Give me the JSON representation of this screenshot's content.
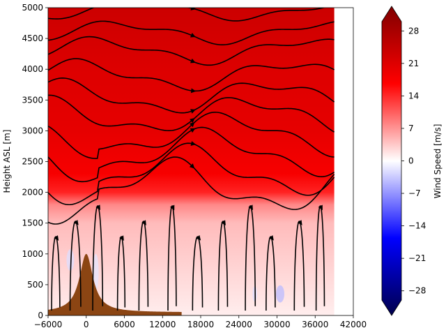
{
  "chart_data": {
    "type": "heatmap",
    "title": "",
    "xlabel": "",
    "ylabel": "Height ASL [m]",
    "xlim": [
      -6000,
      42000
    ],
    "ylim": [
      0,
      5000
    ],
    "x_ticks": [
      -6000,
      0,
      6000,
      12000,
      18000,
      24000,
      30000,
      36000,
      42000
    ],
    "y_ticks": [
      0,
      500,
      1000,
      1500,
      2000,
      2500,
      3000,
      3500,
      4000,
      4500,
      5000
    ],
    "field_extent_x": [
      -6000,
      39000
    ],
    "grid": false,
    "overlay": "streamlines with arrows (black)",
    "terrain": {
      "color": "#8B4513",
      "peak_x": 0,
      "peak_height": 1000,
      "base_height": 50,
      "shape": "bell-shaped mountain"
    },
    "colorbar": {
      "label": "Wind Speed [m/s]",
      "ticks": [
        -28,
        -21,
        -14,
        -7,
        0,
        7,
        14,
        21,
        28
      ],
      "min": -30,
      "max": 30,
      "extend": "both",
      "colormap": "seismic",
      "colors": [
        "#00004c",
        "#0000ff",
        "#ffffff",
        "#ff0000",
        "#800000"
      ]
    },
    "wind_speed_layers": [
      {
        "height": 0,
        "value": 1
      },
      {
        "height": 500,
        "value": 2
      },
      {
        "height": 1000,
        "value": 3
      },
      {
        "height": 1500,
        "value": 4
      },
      {
        "height": 1800,
        "value": 7
      },
      {
        "height": 2000,
        "value": 13
      },
      {
        "height": 2300,
        "value": 16
      },
      {
        "height": 3000,
        "value": 18
      },
      {
        "height": 4000,
        "value": 19
      },
      {
        "height": 5000,
        "value": 21
      }
    ]
  }
}
